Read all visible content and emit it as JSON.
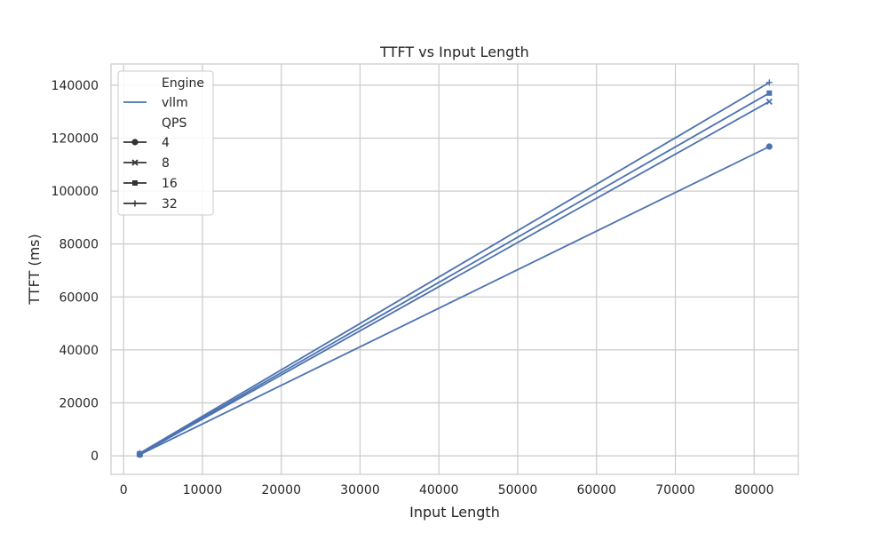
{
  "chart_data": {
    "type": "line",
    "title": "TTFT vs Input Length",
    "xlabel": "Input Length",
    "ylabel": "TTFT (ms)",
    "xlim": [
      -1600,
      85600
    ],
    "ylim": [
      -7000,
      148000
    ],
    "xticks": [
      "0",
      "10000",
      "20000",
      "30000",
      "40000",
      "50000",
      "60000",
      "70000",
      "80000"
    ],
    "yticks": [
      "0",
      "20000",
      "40000",
      "60000",
      "80000",
      "100000",
      "120000",
      "140000"
    ],
    "grid": true,
    "line_color": "#4c72b0",
    "legend": {
      "placement": "top-left",
      "hue_title": "Engine",
      "hue_entries": [
        "vllm"
      ],
      "style_title": "QPS",
      "style_entries": [
        {
          "label": "4",
          "marker": "circle"
        },
        {
          "label": "8",
          "marker": "x"
        },
        {
          "label": "16",
          "marker": "square"
        },
        {
          "label": "32",
          "marker": "plus"
        }
      ]
    },
    "series": [
      {
        "name": "4",
        "marker": "circle",
        "x": [
          2048,
          81920
        ],
        "y": [
          450,
          116800
        ]
      },
      {
        "name": "8",
        "marker": "x",
        "x": [
          2048,
          81920
        ],
        "y": [
          600,
          133800
        ]
      },
      {
        "name": "16",
        "marker": "square",
        "x": [
          2048,
          81920
        ],
        "y": [
          800,
          137000
        ]
      },
      {
        "name": "32",
        "marker": "plus",
        "x": [
          2048,
          81920
        ],
        "y": [
          1000,
          141000
        ]
      }
    ]
  }
}
